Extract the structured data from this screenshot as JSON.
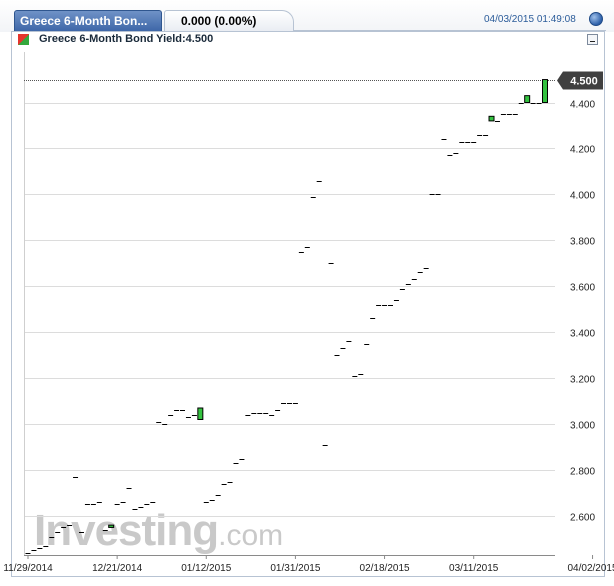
{
  "header": {
    "instrument_tab": "Greece 6-Month Bon...",
    "price_text": "0.000 (0.00%)",
    "timestamp": "04/03/2015 01:49:08"
  },
  "chart_header": {
    "title": "Greece 6-Month Bond Yield:4.500"
  },
  "watermark": {
    "brand": "Investing",
    "suffix": ".com"
  },
  "colors": {
    "up": "#34c240",
    "frame": "#b7c3d3",
    "grid": "#dcdcdc",
    "label_bg": "#404040"
  },
  "chart_data": {
    "type": "candlestick",
    "title": "Greece 6-Month Bond Yield",
    "last_value": 4.5,
    "last_value_label": "4.500",
    "ylim": [
      2.43,
      4.62
    ],
    "yticks": [
      2.6,
      2.8,
      3.0,
      3.2,
      3.4,
      3.6,
      3.8,
      4.0,
      4.2,
      4.4
    ],
    "ytick_labels": [
      "2.600",
      "2.800",
      "3.000",
      "3.200",
      "3.400",
      "3.600",
      "3.800",
      "4.000",
      "4.200",
      "4.400"
    ],
    "xtick_labels": [
      "11/29/2014",
      "12/21/2014",
      "01/12/2015",
      "01/31/2015",
      "02/18/2015",
      "03/11/2015",
      "04/02/2015"
    ],
    "xtick_index": [
      0,
      15,
      30,
      45,
      60,
      75,
      95
    ],
    "grid": true,
    "candles": [
      {
        "o": 2.44,
        "c": 2.44
      },
      {
        "o": 2.45,
        "c": 2.45
      },
      {
        "o": 2.46,
        "c": 2.46
      },
      {
        "o": 2.47,
        "c": 2.47
      },
      {
        "o": 2.51,
        "c": 2.51
      },
      {
        "o": 2.53,
        "c": 2.53
      },
      {
        "o": 2.55,
        "c": 2.55
      },
      {
        "o": 2.56,
        "c": 2.56
      },
      {
        "o": 2.77,
        "c": 2.77
      },
      {
        "o": 2.53,
        "c": 2.53
      },
      {
        "o": 2.65,
        "c": 2.65
      },
      {
        "o": 2.65,
        "c": 2.65
      },
      {
        "o": 2.66,
        "c": 2.66
      },
      {
        "o": 2.54,
        "c": 2.54
      },
      {
        "o": 2.55,
        "c": 2.56
      },
      {
        "o": 2.65,
        "c": 2.65
      },
      {
        "o": 2.66,
        "c": 2.66
      },
      {
        "o": 2.72,
        "c": 2.72
      },
      {
        "o": 2.63,
        "c": 2.63
      },
      {
        "o": 2.64,
        "c": 2.64
      },
      {
        "o": 2.65,
        "c": 2.65
      },
      {
        "o": 2.66,
        "c": 2.66
      },
      {
        "o": 3.01,
        "c": 3.01
      },
      {
        "o": 3.0,
        "c": 3.0
      },
      {
        "o": 3.04,
        "c": 3.04
      },
      {
        "o": 3.06,
        "c": 3.06
      },
      {
        "o": 3.06,
        "c": 3.06
      },
      {
        "o": 3.03,
        "c": 3.03
      },
      {
        "o": 3.04,
        "c": 3.04
      },
      {
        "o": 3.02,
        "c": 3.07
      },
      {
        "o": 2.66,
        "c": 2.66
      },
      {
        "o": 2.67,
        "c": 2.67
      },
      {
        "o": 2.69,
        "c": 2.69
      },
      {
        "o": 2.74,
        "c": 2.74
      },
      {
        "o": 2.75,
        "c": 2.75
      },
      {
        "o": 2.83,
        "c": 2.83
      },
      {
        "o": 2.85,
        "c": 2.85
      },
      {
        "o": 3.04,
        "c": 3.04
      },
      {
        "o": 3.05,
        "c": 3.05
      },
      {
        "o": 3.05,
        "c": 3.05
      },
      {
        "o": 3.05,
        "c": 3.05
      },
      {
        "o": 3.04,
        "c": 3.04
      },
      {
        "o": 3.06,
        "c": 3.06
      },
      {
        "o": 3.09,
        "c": 3.09
      },
      {
        "o": 3.09,
        "c": 3.09
      },
      {
        "o": 3.09,
        "c": 3.09
      },
      {
        "o": 3.75,
        "c": 3.75
      },
      {
        "o": 3.77,
        "c": 3.77
      },
      {
        "o": 3.99,
        "c": 3.99
      },
      {
        "o": 4.06,
        "c": 4.06
      },
      {
        "o": 2.91,
        "c": 2.91
      },
      {
        "o": 3.7,
        "c": 3.7
      },
      {
        "o": 3.3,
        "c": 3.3
      },
      {
        "o": 3.33,
        "c": 3.33
      },
      {
        "o": 3.36,
        "c": 3.36
      },
      {
        "o": 3.21,
        "c": 3.21
      },
      {
        "o": 3.22,
        "c": 3.22
      },
      {
        "o": 3.35,
        "c": 3.35
      },
      {
        "o": 3.46,
        "c": 3.46
      },
      {
        "o": 3.52,
        "c": 3.52
      },
      {
        "o": 3.52,
        "c": 3.52
      },
      {
        "o": 3.52,
        "c": 3.52
      },
      {
        "o": 3.54,
        "c": 3.54
      },
      {
        "o": 3.59,
        "c": 3.59
      },
      {
        "o": 3.61,
        "c": 3.61
      },
      {
        "o": 3.63,
        "c": 3.63
      },
      {
        "o": 3.66,
        "c": 3.66
      },
      {
        "o": 3.68,
        "c": 3.68
      },
      {
        "o": 4.0,
        "c": 4.0
      },
      {
        "o": 4.0,
        "c": 4.0
      },
      {
        "o": 4.24,
        "c": 4.24
      },
      {
        "o": 4.17,
        "c": 4.17
      },
      {
        "o": 4.18,
        "c": 4.18
      },
      {
        "o": 4.23,
        "c": 4.23
      },
      {
        "o": 4.23,
        "c": 4.23
      },
      {
        "o": 4.23,
        "c": 4.23
      },
      {
        "o": 4.26,
        "c": 4.26
      },
      {
        "o": 4.26,
        "c": 4.26
      },
      {
        "o": 4.32,
        "c": 4.34
      },
      {
        "o": 4.32,
        "c": 4.32
      },
      {
        "o": 4.35,
        "c": 4.35
      },
      {
        "o": 4.35,
        "c": 4.35
      },
      {
        "o": 4.35,
        "c": 4.35
      },
      {
        "o": 4.4,
        "c": 4.4
      },
      {
        "o": 4.4,
        "c": 4.43
      },
      {
        "o": 4.4,
        "c": 4.4
      },
      {
        "o": 4.4,
        "c": 4.4
      },
      {
        "o": 4.4,
        "c": 4.5
      }
    ]
  }
}
